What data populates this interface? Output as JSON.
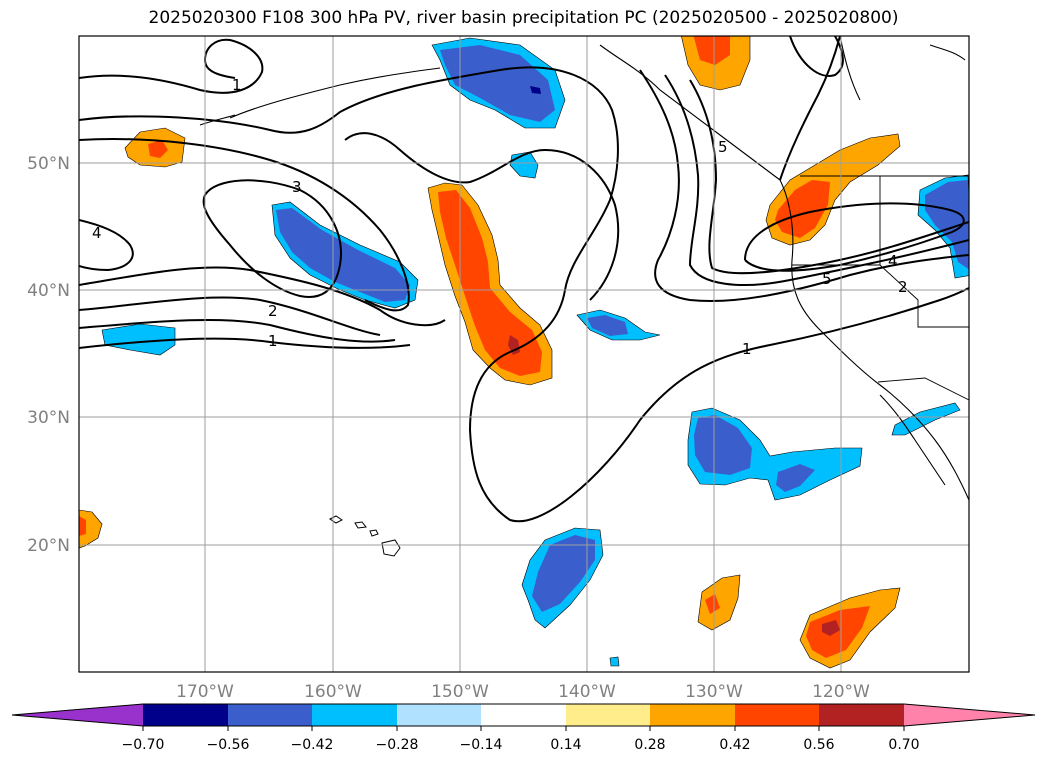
{
  "title": "2025020300 F108 300 hPa PV, river basin precipitation PC (2025020500 - 2025020800)",
  "lat_labels": [
    "50°N",
    "40°N",
    "30°N",
    "20°N"
  ],
  "lon_labels": [
    "170°W",
    "160°W",
    "150°W",
    "140°W",
    "130°W",
    "120°W"
  ],
  "contour_labels": [
    "1",
    "3",
    "4",
    "2",
    "1",
    "1",
    "5",
    "2",
    "4",
    "5"
  ],
  "colorbar": {
    "tick_labels": [
      "−0.70",
      "−0.56",
      "−0.42",
      "−0.28",
      "−0.14",
      "0.14",
      "0.28",
      "0.42",
      "0.56",
      "0.70"
    ],
    "colors": [
      "#9932cc",
      "#00008b",
      "#3a5fcd",
      "#00bfff",
      "#b0e2ff",
      "#ffffff",
      "#ffec8b",
      "#ffa500",
      "#ff4500",
      "#b22222",
      "#ff82ab"
    ]
  },
  "fill_colors": {
    "blue_mid": "#3a5fcd",
    "blue_light": "#00bfff",
    "blue_dark": "#00008b",
    "orange": "#ffa500",
    "red_orange": "#ff4500",
    "dark_red": "#b22222",
    "yellow": "#ffec8b"
  }
}
